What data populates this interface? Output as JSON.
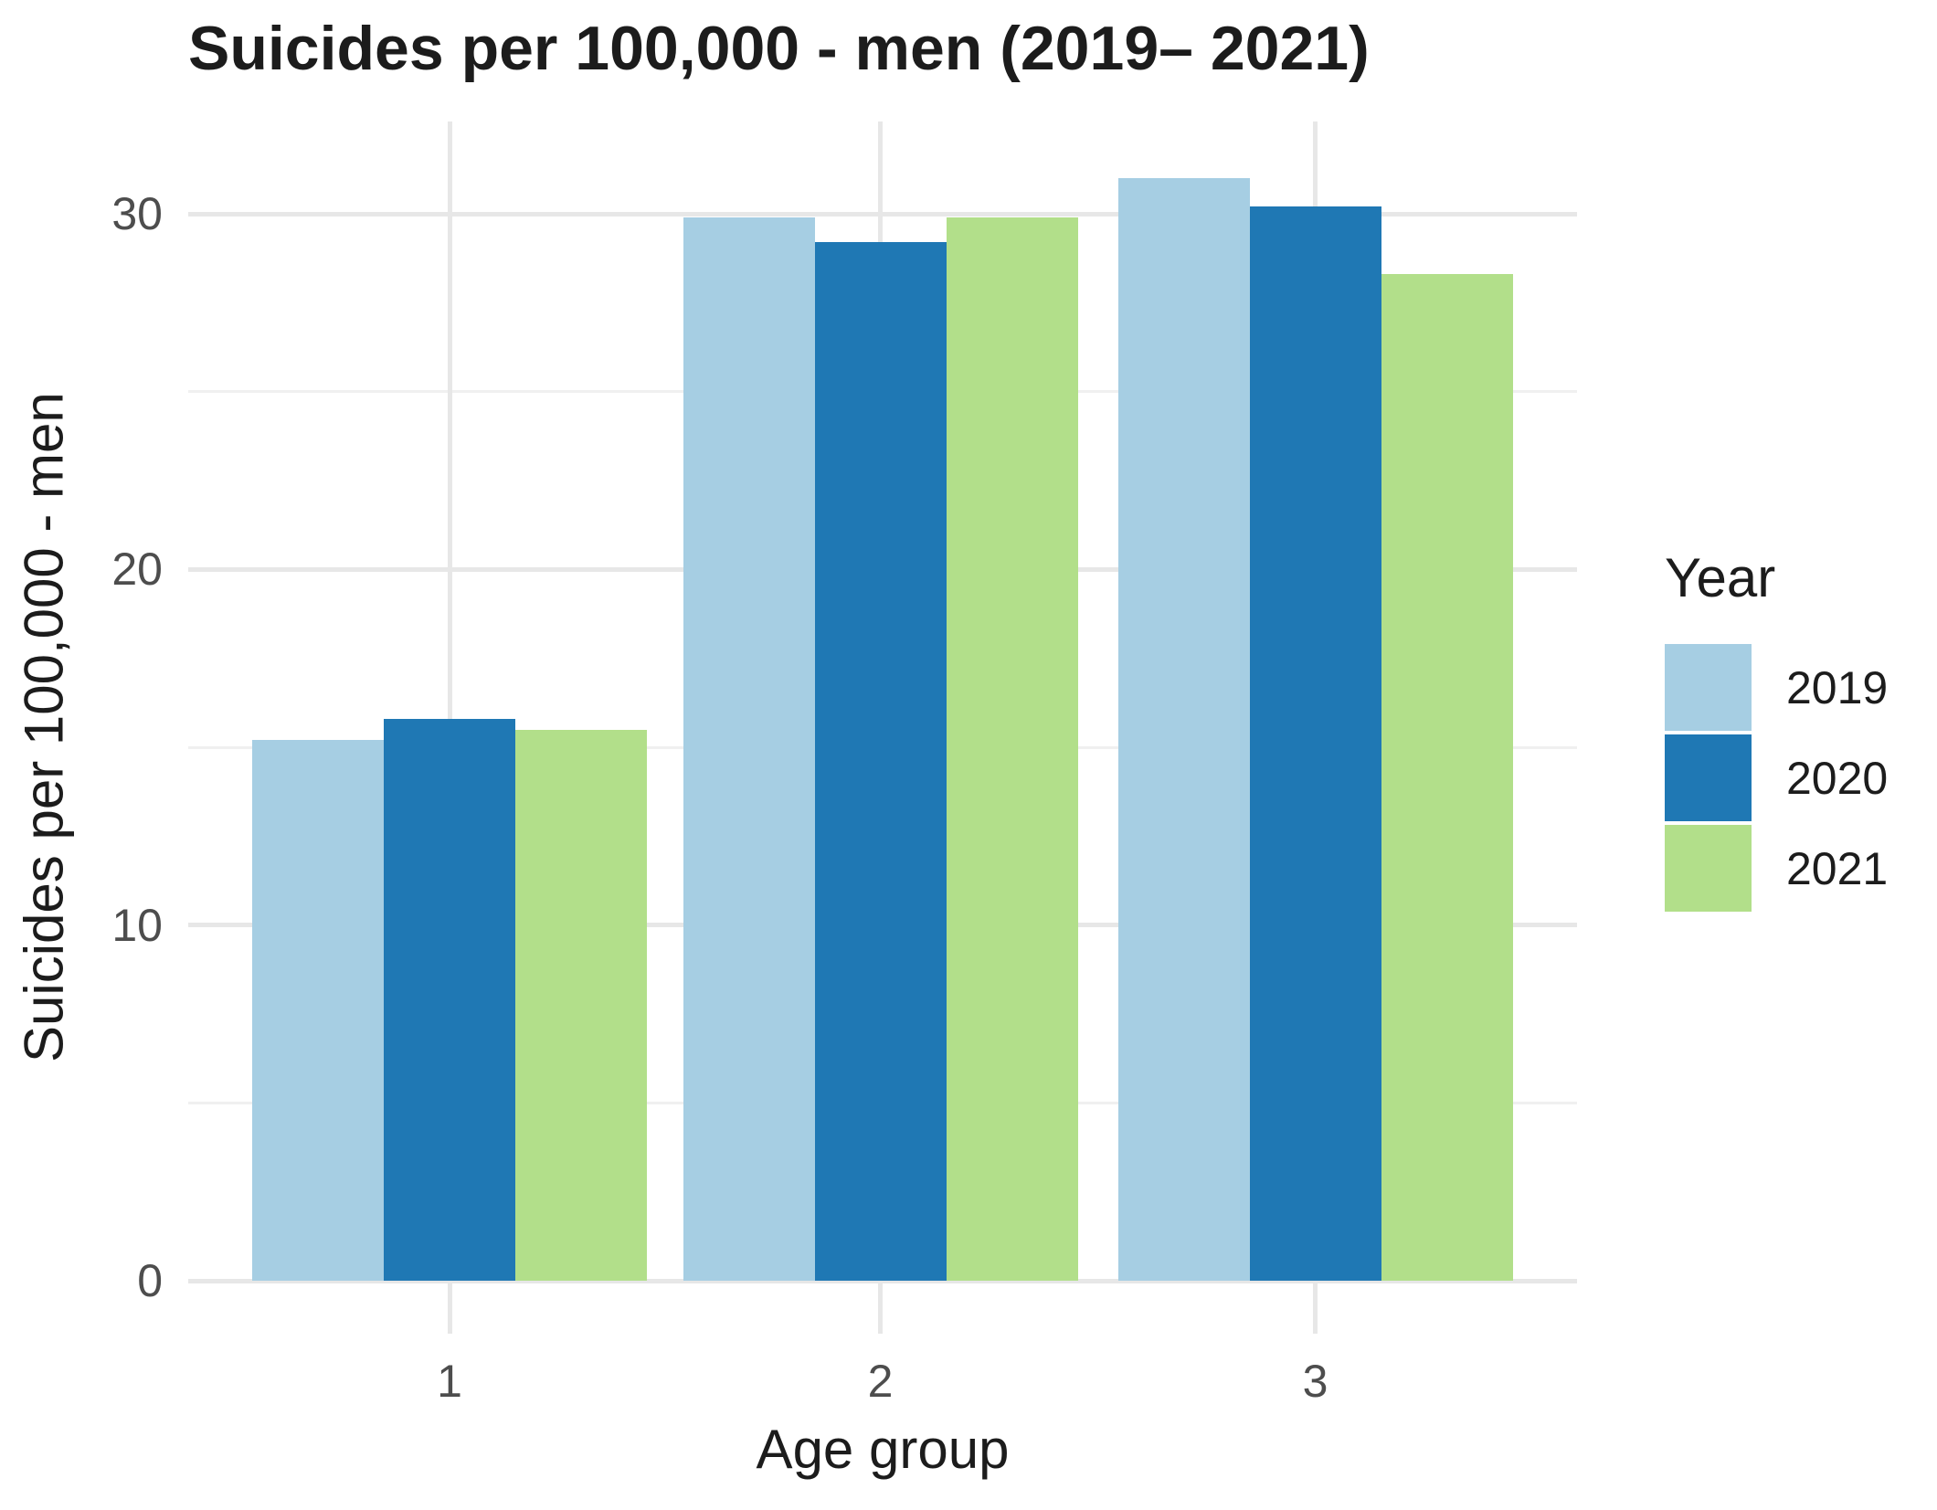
{
  "title": "Suicides per 100,000 - men (2019– 2021)",
  "chart_data": {
    "type": "bar",
    "title": "Suicides per 100,000 - men (2019– 2021)",
    "xlabel": "Age group",
    "ylabel": "Suicides per 100,000 - men",
    "categories": [
      "1",
      "2",
      "3"
    ],
    "series": [
      {
        "name": "2019",
        "color": "#a6cee3",
        "values": [
          15.2,
          29.9,
          31.0
        ]
      },
      {
        "name": "2020",
        "color": "#1f78b4",
        "values": [
          15.8,
          29.2,
          30.2
        ]
      },
      {
        "name": "2021",
        "color": "#b2df8a",
        "values": [
          15.5,
          29.9,
          28.3
        ]
      }
    ],
    "ylim": [
      0,
      32.6
    ],
    "yticks": [
      0,
      10,
      20,
      30
    ],
    "yticks_minor": [
      5,
      15,
      25
    ],
    "grid": true,
    "legend_title": "Year",
    "legend_position": "right",
    "bar_layout": "grouped"
  },
  "colors": {
    "background": "#ffffff",
    "grid_major": "#e7e7e7",
    "grid_minor": "#f0f0f0",
    "tick_text": "#4d4d4d",
    "title_text": "#1c1c1c",
    "series_2019": "#a6cee3",
    "series_2020": "#1f78b4",
    "series_2021": "#b2df8a"
  }
}
